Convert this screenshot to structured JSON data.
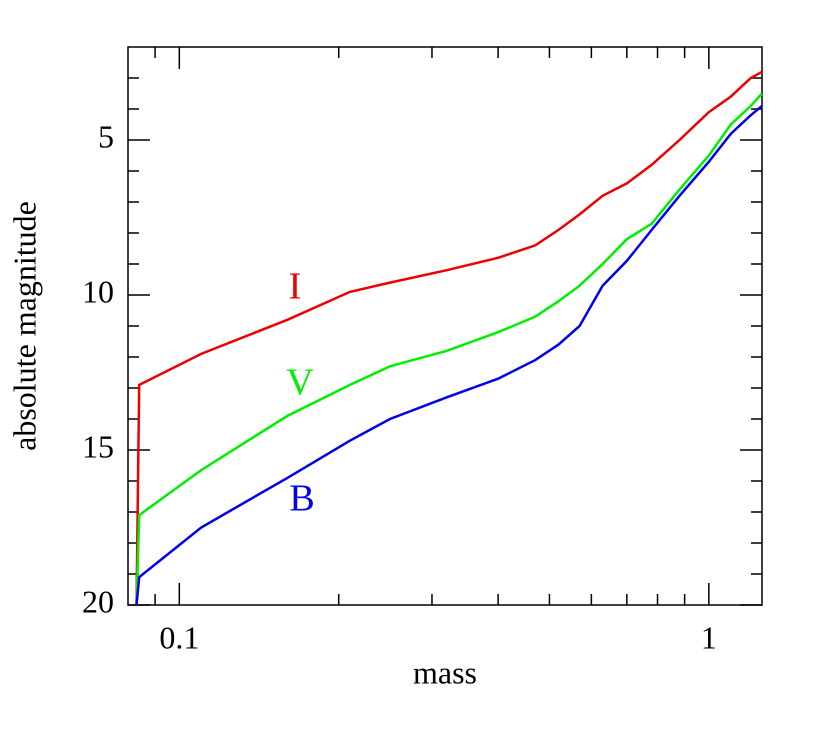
{
  "chart_data": {
    "type": "line",
    "x_label": "mass",
    "y_label": "absolute magnitude",
    "x_log": true,
    "xlim": [
      0.08,
      1.26
    ],
    "ylim": [
      20,
      2
    ],
    "xticks": [
      {
        "value": 0.1,
        "label": "0.1"
      },
      1
    ],
    "xminorticks": [
      0.09,
      0.2,
      0.3,
      0.4,
      0.5,
      0.6,
      0.7,
      0.8,
      0.9
    ],
    "yticks": [
      5,
      10,
      15,
      20
    ],
    "yminorticks": [
      3,
      4,
      6,
      7,
      8,
      9,
      11,
      12,
      13,
      14,
      16,
      17,
      18,
      19
    ],
    "x": [
      0.083,
      0.084,
      0.11,
      0.16,
      0.21,
      0.25,
      0.32,
      0.4,
      0.47,
      0.52,
      0.57,
      0.63,
      0.7,
      0.78,
      0.88,
      1.0,
      1.1,
      1.2,
      1.26
    ],
    "series": [
      {
        "name": "I",
        "color": "#ee0000",
        "values": [
          20,
          12.9,
          11.9,
          10.8,
          9.9,
          9.6,
          9.2,
          8.8,
          8.4,
          7.9,
          7.4,
          6.8,
          6.4,
          5.8,
          5.0,
          4.1,
          3.6,
          3.0,
          2.8
        ]
      },
      {
        "name": "V",
        "color": "#00ee00",
        "values": [
          20,
          17.1,
          15.65,
          13.9,
          12.9,
          12.3,
          11.8,
          11.2,
          10.7,
          10.2,
          9.7,
          9.0,
          8.2,
          7.7,
          6.6,
          5.5,
          4.5,
          3.9,
          3.5
        ]
      },
      {
        "name": "B",
        "color": "#0000ee",
        "values": [
          20,
          19.1,
          17.5,
          15.9,
          14.7,
          14.0,
          13.3,
          12.7,
          12.1,
          11.6,
          11.0,
          9.7,
          8.9,
          7.9,
          6.8,
          5.7,
          4.8,
          4.2,
          3.9
        ]
      }
    ]
  }
}
